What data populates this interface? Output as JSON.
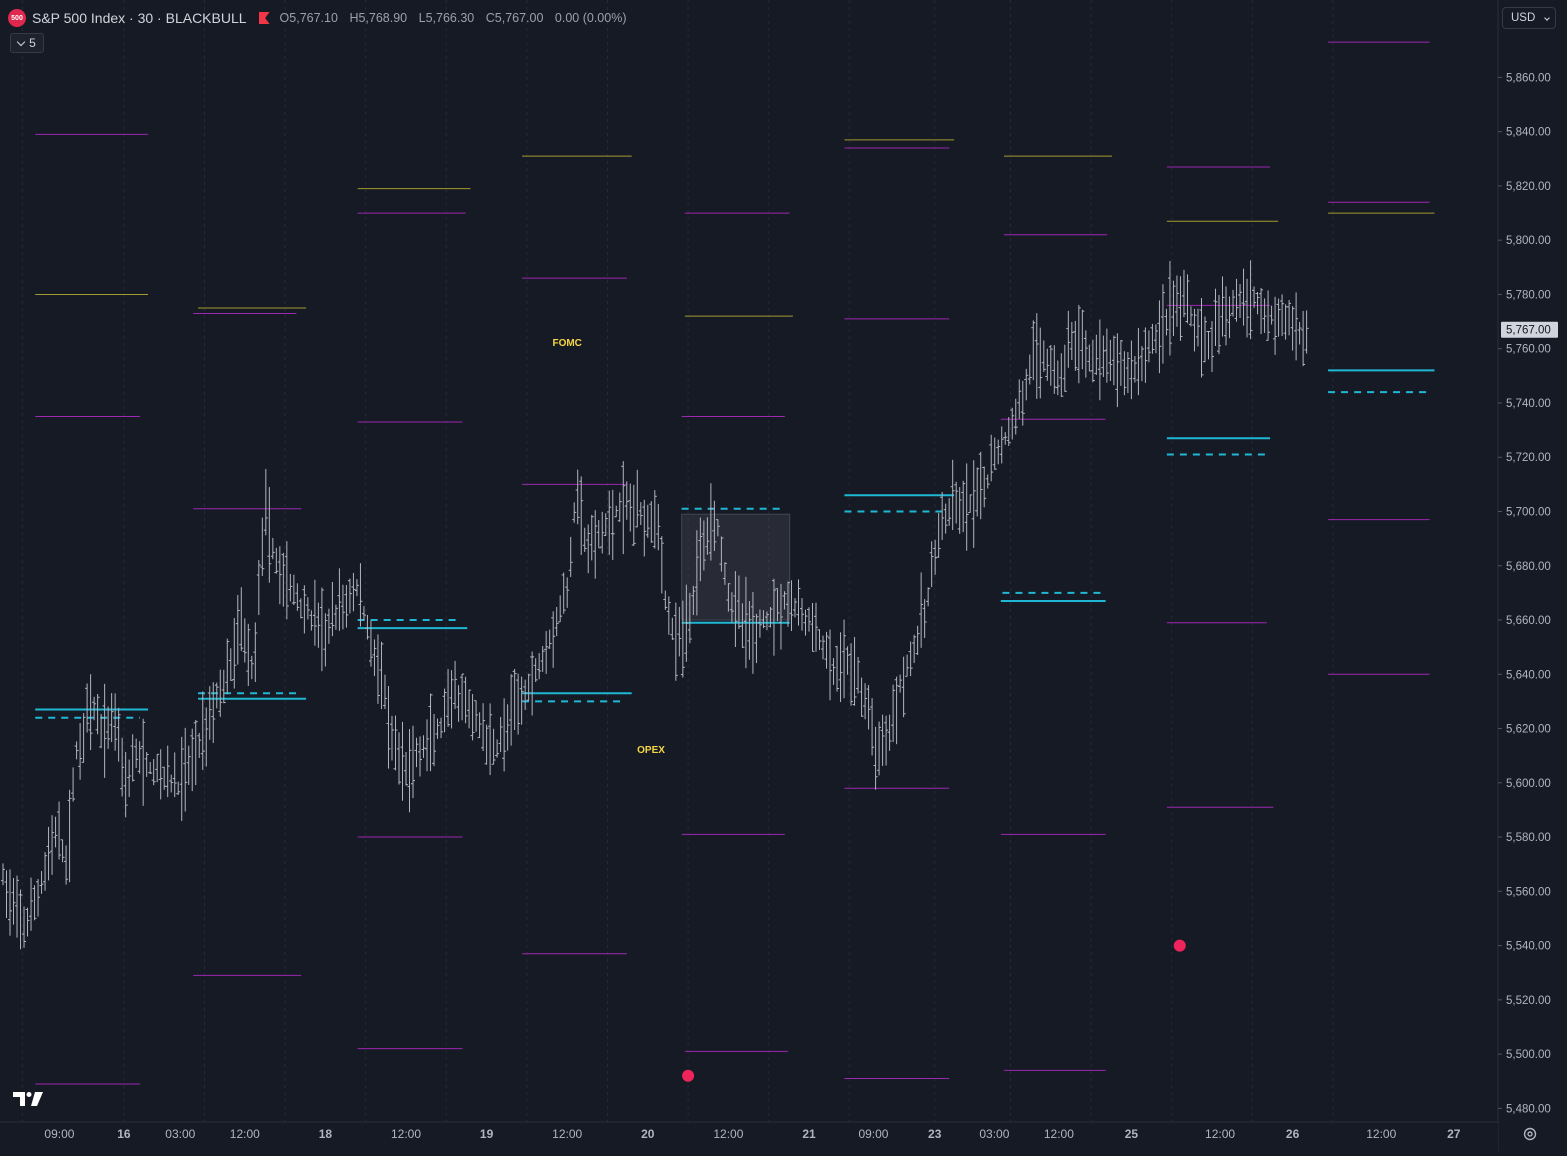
{
  "header": {
    "badge": "500",
    "title": "S&P 500 Index · 30 · BLACKBULL",
    "ohlc": [
      {
        "label": "O",
        "value": "5,767.10"
      },
      {
        "label": "H",
        "value": "5,768.90"
      },
      {
        "label": "L",
        "value": "5,766.30"
      },
      {
        "label": "C",
        "value": "5,767.00"
      }
    ],
    "change": "0.00 (0.00%)",
    "collapse_count": "5",
    "currency": "USD",
    "flag_color": "#f23645"
  },
  "colors": {
    "background": "#161a25",
    "price_bars": "#b2b5be",
    "magenta_levels": "#9c27b0",
    "olive_levels": "#a39a2d",
    "cyan_levels": "#1fb8d4",
    "event_labels": "#f5d742",
    "dots": "#f0245c"
  },
  "icons": [
    "tradingview-logo-icon",
    "flag-icon",
    "settings-icon",
    "chevron-down-icon"
  ],
  "chart_data": {
    "type": "ohlc-bars",
    "price_axis": {
      "ticks": [
        5480,
        5500,
        5520,
        5540,
        5560,
        5580,
        5600,
        5620,
        5640,
        5660,
        5680,
        5700,
        5720,
        5740,
        5760,
        5780,
        5800,
        5820,
        5840,
        5860
      ],
      "tick_labels": [
        "5,480.00",
        "5,500.00",
        "5,520.00",
        "5,540.00",
        "5,560.00",
        "5,580.00",
        "5,600.00",
        "5,620.00",
        "5,640.00",
        "5,660.00",
        "5,680.00",
        "5,700.00",
        "5,720.00",
        "5,740.00",
        "5,760.00",
        "5,780.00",
        "5,800.00",
        "5,820.00",
        "5,840.00",
        "5,860.00"
      ],
      "range": [
        5475,
        5880
      ],
      "last_price": 5767.0,
      "last_price_label": "5,767.00"
    },
    "time_axis": {
      "start_session": 0,
      "ticks": [
        {
          "t": 0.35,
          "label": "09:00"
        },
        {
          "t": 0.75,
          "label": "16"
        },
        {
          "t": 1.1,
          "label": "03:00"
        },
        {
          "t": 1.5,
          "label": "12:00"
        },
        {
          "t": 2.0,
          "label": "18"
        },
        {
          "t": 2.5,
          "label": "12:00"
        },
        {
          "t": 3.0,
          "label": "19"
        },
        {
          "t": 3.5,
          "label": "12:00"
        },
        {
          "t": 4.0,
          "label": "20"
        },
        {
          "t": 4.5,
          "label": "12:00"
        },
        {
          "t": 5.0,
          "label": "21"
        },
        {
          "t": 5.4,
          "label": "09:00"
        },
        {
          "t": 5.78,
          "label": "23"
        },
        {
          "t": 6.15,
          "label": "03:00"
        },
        {
          "t": 6.55,
          "label": "12:00"
        },
        {
          "t": 7.0,
          "label": "25"
        },
        {
          "t": 7.55,
          "label": "12:00"
        },
        {
          "t": 8.0,
          "label": "26"
        },
        {
          "t": 8.55,
          "label": "12:00"
        },
        {
          "t": 9.0,
          "label": "27"
        }
      ],
      "range": [
        0,
        9.3
      ]
    },
    "session_guides": [
      0.12,
      0.75,
      1.25,
      1.75,
      2.25,
      2.75,
      3.25,
      3.75,
      4.25,
      4.75,
      5.25,
      5.78,
      6.25,
      6.75,
      7.25,
      7.75,
      8.25
    ],
    "price_path": [
      [
        0.0,
        5565
      ],
      [
        0.08,
        5550
      ],
      [
        0.16,
        5548
      ],
      [
        0.25,
        5565
      ],
      [
        0.32,
        5582
      ],
      [
        0.4,
        5570
      ],
      [
        0.45,
        5610
      ],
      [
        0.55,
        5628
      ],
      [
        0.62,
        5618
      ],
      [
        0.7,
        5625
      ],
      [
        0.76,
        5600
      ],
      [
        0.82,
        5610
      ],
      [
        0.92,
        5605
      ],
      [
        1.0,
        5603
      ],
      [
        1.08,
        5598
      ],
      [
        1.2,
        5612
      ],
      [
        1.3,
        5628
      ],
      [
        1.4,
        5640
      ],
      [
        1.48,
        5660
      ],
      [
        1.55,
        5640
      ],
      [
        1.62,
        5700
      ],
      [
        1.7,
        5680
      ],
      [
        1.8,
        5670
      ],
      [
        1.9,
        5662
      ],
      [
        2.0,
        5655
      ],
      [
        2.1,
        5665
      ],
      [
        2.2,
        5672
      ],
      [
        2.28,
        5652
      ],
      [
        2.35,
        5640
      ],
      [
        2.4,
        5615
      ],
      [
        2.5,
        5605
      ],
      [
        2.6,
        5612
      ],
      [
        2.72,
        5620
      ],
      [
        2.8,
        5632
      ],
      [
        2.88,
        5627
      ],
      [
        2.95,
        5622
      ],
      [
        3.05,
        5612
      ],
      [
        3.12,
        5620
      ],
      [
        3.2,
        5630
      ],
      [
        3.3,
        5640
      ],
      [
        3.4,
        5655
      ],
      [
        3.5,
        5670
      ],
      [
        3.56,
        5710
      ],
      [
        3.62,
        5685
      ],
      [
        3.7,
        5690
      ],
      [
        3.8,
        5700
      ],
      [
        3.9,
        5702
      ],
      [
        4.0,
        5698
      ],
      [
        4.06,
        5700
      ],
      [
        4.1,
        5670
      ],
      [
        4.18,
        5650
      ],
      [
        4.26,
        5660
      ],
      [
        4.34,
        5690
      ],
      [
        4.42,
        5700
      ],
      [
        4.5,
        5670
      ],
      [
        4.58,
        5660
      ],
      [
        4.66,
        5655
      ],
      [
        4.76,
        5662
      ],
      [
        4.85,
        5668
      ],
      [
        4.95,
        5662
      ],
      [
        5.05,
        5655
      ],
      [
        5.15,
        5640
      ],
      [
        5.25,
        5645
      ],
      [
        5.35,
        5630
      ],
      [
        5.42,
        5612
      ],
      [
        5.5,
        5620
      ],
      [
        5.58,
        5640
      ],
      [
        5.66,
        5650
      ],
      [
        5.74,
        5668
      ],
      [
        5.8,
        5692
      ],
      [
        5.88,
        5700
      ],
      [
        6.0,
        5702
      ],
      [
        6.08,
        5706
      ],
      [
        6.15,
        5720
      ],
      [
        6.25,
        5730
      ],
      [
        6.3,
        5738
      ],
      [
        6.38,
        5755
      ],
      [
        6.46,
        5758
      ],
      [
        6.55,
        5748
      ],
      [
        6.62,
        5763
      ],
      [
        6.7,
        5760
      ],
      [
        6.8,
        5756
      ],
      [
        6.92,
        5754
      ],
      [
        7.0,
        5752
      ],
      [
        7.08,
        5758
      ],
      [
        7.16,
        5765
      ],
      [
        7.24,
        5775
      ],
      [
        7.32,
        5778
      ],
      [
        7.4,
        5768
      ],
      [
        7.48,
        5762
      ],
      [
        7.56,
        5770
      ],
      [
        7.64,
        5778
      ],
      [
        7.72,
        5780
      ],
      [
        7.82,
        5775
      ],
      [
        7.92,
        5770
      ],
      [
        8.0,
        5770
      ],
      [
        8.05,
        5765
      ],
      [
        8.1,
        5767
      ]
    ],
    "levels": [
      {
        "color": "magenta",
        "style": "thin",
        "t": [
          0.2,
          0.9
        ],
        "price": 5839
      },
      {
        "color": "olive",
        "style": "thin",
        "t": [
          0.2,
          0.9
        ],
        "price": 5780
      },
      {
        "color": "magenta",
        "style": "thin",
        "t": [
          0.2,
          0.85
        ],
        "price": 5735
      },
      {
        "color": "cyan",
        "style": "solid",
        "t": [
          0.2,
          0.9
        ],
        "price": 5627
      },
      {
        "color": "cyan",
        "style": "dash",
        "t": [
          0.2,
          0.85
        ],
        "price": 5624
      },
      {
        "color": "magenta",
        "style": "thin",
        "t": [
          0.2,
          0.85
        ],
        "price": 5489
      },
      {
        "color": "olive",
        "style": "thin",
        "t": [
          1.21,
          1.88
        ],
        "price": 5775
      },
      {
        "color": "magenta",
        "style": "thin",
        "t": [
          1.18,
          1.82
        ],
        "price": 5773
      },
      {
        "color": "magenta",
        "style": "thin",
        "t": [
          1.18,
          1.85
        ],
        "price": 5701
      },
      {
        "color": "cyan",
        "style": "dash",
        "t": [
          1.21,
          1.85
        ],
        "price": 5633
      },
      {
        "color": "cyan",
        "style": "solid",
        "t": [
          1.21,
          1.88
        ],
        "price": 5631
      },
      {
        "color": "magenta",
        "style": "thin",
        "t": [
          1.18,
          1.85
        ],
        "price": 5529
      },
      {
        "color": "olive",
        "style": "thin",
        "t": [
          2.2,
          2.9
        ],
        "price": 5819
      },
      {
        "color": "magenta",
        "style": "thin",
        "t": [
          2.2,
          2.87
        ],
        "price": 5810
      },
      {
        "color": "magenta",
        "style": "thin",
        "t": [
          2.2,
          2.85
        ],
        "price": 5733
      },
      {
        "color": "cyan",
        "style": "dash",
        "t": [
          2.2,
          2.83
        ],
        "price": 5660
      },
      {
        "color": "cyan",
        "style": "solid",
        "t": [
          2.2,
          2.88
        ],
        "price": 5657
      },
      {
        "color": "magenta",
        "style": "thin",
        "t": [
          2.2,
          2.85
        ],
        "price": 5580
      },
      {
        "color": "magenta",
        "style": "thin",
        "t": [
          2.2,
          2.85
        ],
        "price": 5502
      },
      {
        "color": "olive",
        "style": "thin",
        "t": [
          3.22,
          3.9
        ],
        "price": 5831
      },
      {
        "color": "magenta",
        "style": "thin",
        "t": [
          3.22,
          3.87
        ],
        "price": 5786
      },
      {
        "color": "magenta",
        "style": "thin",
        "t": [
          3.22,
          3.87
        ],
        "price": 5710
      },
      {
        "color": "cyan",
        "style": "solid",
        "t": [
          3.22,
          3.9
        ],
        "price": 5633
      },
      {
        "color": "cyan",
        "style": "dash",
        "t": [
          3.22,
          3.85
        ],
        "price": 5630
      },
      {
        "color": "magenta",
        "style": "thin",
        "t": [
          3.22,
          3.87
        ],
        "price": 5537
      },
      {
        "color": "magenta",
        "style": "thin",
        "t": [
          4.23,
          4.88
        ],
        "price": 5810
      },
      {
        "color": "olive",
        "style": "thin",
        "t": [
          4.23,
          4.9
        ],
        "price": 5772
      },
      {
        "color": "magenta",
        "style": "thin",
        "t": [
          4.21,
          4.85
        ],
        "price": 5735
      },
      {
        "color": "cyan",
        "style": "dash",
        "t": [
          4.21,
          4.85
        ],
        "price": 5701
      },
      {
        "color": "cyan",
        "style": "solid",
        "t": [
          4.21,
          4.88
        ],
        "price": 5659
      },
      {
        "color": "magenta",
        "style": "thin",
        "t": [
          4.21,
          4.85
        ],
        "price": 5581
      },
      {
        "color": "magenta",
        "style": "thin",
        "t": [
          4.23,
          4.87
        ],
        "price": 5501
      },
      {
        "color": "olive",
        "style": "thin",
        "t": [
          5.22,
          5.9
        ],
        "price": 5837
      },
      {
        "color": "magenta",
        "style": "thin",
        "t": [
          5.22,
          5.87
        ],
        "price": 5834
      },
      {
        "color": "magenta",
        "style": "thin",
        "t": [
          5.22,
          5.87
        ],
        "price": 5771
      },
      {
        "color": "cyan",
        "style": "solid",
        "t": [
          5.22,
          5.9
        ],
        "price": 5706
      },
      {
        "color": "cyan",
        "style": "dash",
        "t": [
          5.22,
          5.85
        ],
        "price": 5700
      },
      {
        "color": "magenta",
        "style": "thin",
        "t": [
          5.22,
          5.87
        ],
        "price": 5598
      },
      {
        "color": "magenta",
        "style": "thin",
        "t": [
          5.22,
          5.87
        ],
        "price": 5491
      },
      {
        "color": "olive",
        "style": "thin",
        "t": [
          6.21,
          6.88
        ],
        "price": 5831
      },
      {
        "color": "magenta",
        "style": "thin",
        "t": [
          6.21,
          6.85
        ],
        "price": 5802
      },
      {
        "color": "magenta",
        "style": "thin",
        "t": [
          6.19,
          6.84
        ],
        "price": 5734
      },
      {
        "color": "cyan",
        "style": "dash",
        "t": [
          6.2,
          6.82
        ],
        "price": 5670
      },
      {
        "color": "cyan",
        "style": "solid",
        "t": [
          6.19,
          6.84
        ],
        "price": 5667
      },
      {
        "color": "magenta",
        "style": "thin",
        "t": [
          6.19,
          6.84
        ],
        "price": 5581
      },
      {
        "color": "magenta",
        "style": "thin",
        "t": [
          6.21,
          6.84
        ],
        "price": 5494
      },
      {
        "color": "magenta",
        "style": "thin",
        "t": [
          7.22,
          7.86
        ],
        "price": 5827
      },
      {
        "color": "olive",
        "style": "thin",
        "t": [
          7.22,
          7.91
        ],
        "price": 5807
      },
      {
        "color": "magenta",
        "style": "thin",
        "t": [
          7.22,
          7.86
        ],
        "price": 5776
      },
      {
        "color": "cyan",
        "style": "solid",
        "t": [
          7.22,
          7.86
        ],
        "price": 5727
      },
      {
        "color": "cyan",
        "style": "dash",
        "t": [
          7.22,
          7.84
        ],
        "price": 5721
      },
      {
        "color": "magenta",
        "style": "thin",
        "t": [
          7.22,
          7.84
        ],
        "price": 5659
      },
      {
        "color": "magenta",
        "style": "thin",
        "t": [
          7.22,
          7.88
        ],
        "price": 5591
      },
      {
        "color": "magenta",
        "style": "thin",
        "t": [
          8.22,
          8.85
        ],
        "price": 5873
      },
      {
        "color": "magenta",
        "style": "thin",
        "t": [
          8.22,
          8.85
        ],
        "price": 5814
      },
      {
        "color": "olive",
        "style": "thin",
        "t": [
          8.22,
          8.88
        ],
        "price": 5810
      },
      {
        "color": "cyan",
        "style": "solid",
        "t": [
          8.22,
          8.88
        ],
        "price": 5752
      },
      {
        "color": "cyan",
        "style": "dash",
        "t": [
          8.22,
          8.85
        ],
        "price": 5744
      },
      {
        "color": "magenta",
        "style": "thin",
        "t": [
          8.22,
          8.85
        ],
        "price": 5697
      },
      {
        "color": "magenta",
        "style": "thin",
        "t": [
          8.22,
          8.85
        ],
        "price": 5640
      }
    ],
    "range_box": {
      "t": [
        4.21,
        4.88
      ],
      "price": [
        5660,
        5699
      ]
    },
    "annotations": [
      {
        "text": "FOMC",
        "t": 3.5,
        "price": 5761
      },
      {
        "text": "OPEX",
        "t": 4.02,
        "price": 5611
      }
    ],
    "dots": [
      {
        "t": 4.25,
        "price": 5492
      },
      {
        "t": 7.3,
        "price": 5540
      }
    ]
  }
}
